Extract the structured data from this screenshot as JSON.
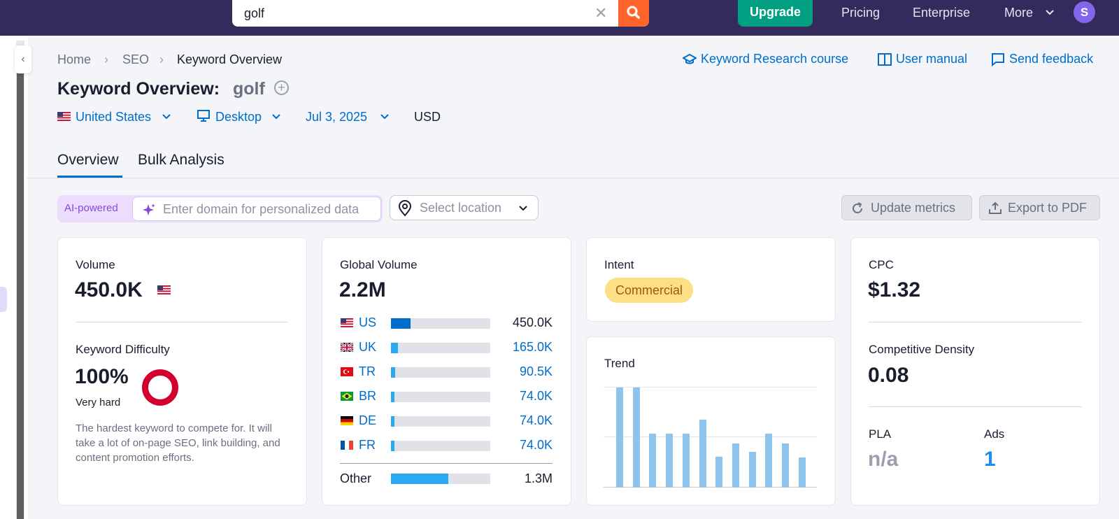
{
  "header": {
    "search_value": "golf",
    "clear_icon": "close-icon",
    "search_icon": "search-icon",
    "upgrade": "Upgrade",
    "nav": [
      "Pricing",
      "Enterprise",
      "More"
    ],
    "avatar": "S",
    "brand_color": "#352a5c",
    "accent": "#ff642d",
    "upgrade_color": "#009f81"
  },
  "breadcrumb": [
    "Home",
    "SEO",
    "Keyword Overview"
  ],
  "links": {
    "course": "Keyword Research course",
    "manual": "User manual",
    "feedback": "Send feedback"
  },
  "title": {
    "label": "Keyword Overview:",
    "keyword": "golf"
  },
  "filters": {
    "country": "United States",
    "device": "Desktop",
    "date": "Jul 3, 2025",
    "currency": "USD"
  },
  "tabs": [
    "Overview",
    "Bulk Analysis"
  ],
  "tools": {
    "ai_label": "AI-powered",
    "domain_placeholder": "Enter domain for personalized data",
    "location_placeholder": "Select location",
    "update": "Update metrics",
    "export": "Export to PDF"
  },
  "volume": {
    "label": "Volume",
    "value": "450.0K"
  },
  "kd": {
    "label": "Keyword Difficulty",
    "value": "100%",
    "level": "Very hard",
    "description": "The hardest keyword to compete for. It will take a lot of on-page SEO, link building, and content promotion efforts.",
    "color": "#d1002f"
  },
  "global": {
    "label": "Global Volume",
    "value": "2.2M",
    "countries": [
      {
        "code": "US",
        "value": "450.0K",
        "share": 0.2
      },
      {
        "code": "UK",
        "value": "165.0K",
        "share": 0.07
      },
      {
        "code": "TR",
        "value": "90.5K",
        "share": 0.04
      },
      {
        "code": "BR",
        "value": "74.0K",
        "share": 0.035
      },
      {
        "code": "DE",
        "value": "74.0K",
        "share": 0.035
      },
      {
        "code": "FR",
        "value": "74.0K",
        "share": 0.035
      }
    ],
    "other": {
      "label": "Other",
      "value": "1.3M",
      "share": 0.58
    }
  },
  "intent": {
    "label": "Intent",
    "value": "Commercial"
  },
  "trend": {
    "label": "Trend",
    "values": [
      1.0,
      1.0,
      0.54,
      0.54,
      0.54,
      0.68,
      0.31,
      0.44,
      0.36,
      0.54,
      0.44,
      0.3
    ]
  },
  "cpc": {
    "label": "CPC",
    "value": "$1.32"
  },
  "density": {
    "label": "Competitive Density",
    "value": "0.08"
  },
  "pla": {
    "label": "PLA",
    "value": "n/a"
  },
  "ads": {
    "label": "Ads",
    "value": "1"
  }
}
